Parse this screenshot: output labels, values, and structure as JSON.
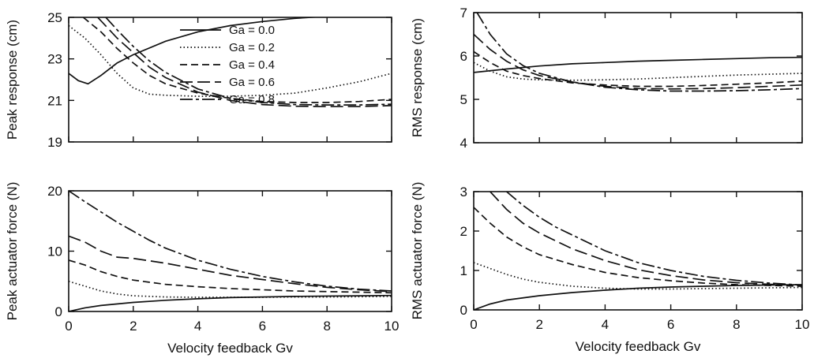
{
  "styles": [
    {
      "dash": "",
      "width": 1.7
    },
    {
      "dash": "1.5 3",
      "width": 1.9
    },
    {
      "dash": "9 5",
      "width": 1.7
    },
    {
      "dash": "16 6",
      "width": 1.7
    },
    {
      "dash": "16 4 4 4",
      "width": 1.7
    }
  ],
  "chart_data": [
    {
      "type": "line",
      "xlabel": "",
      "ylabel": "Peak response (cm)",
      "xlim": [
        0,
        10
      ],
      "ylim": [
        19,
        25
      ],
      "xticks": [],
      "yticks": [
        19,
        21,
        23,
        25
      ],
      "legend": {
        "placement": "top-right",
        "entries": [
          "Ga = 0.0",
          "Ga = 0.2",
          "Ga = 0.4",
          "Ga = 0.6",
          "Ga = 0.8"
        ]
      },
      "series": [
        {
          "name": "Ga = 0.0",
          "x": [
            0,
            0.3,
            0.6,
            1,
            1.5,
            2,
            3,
            4,
            5,
            6,
            7,
            8,
            9,
            10
          ],
          "y": [
            22.3,
            21.95,
            21.8,
            22.2,
            22.8,
            23.2,
            23.85,
            24.3,
            24.6,
            24.8,
            24.95,
            25.05,
            25.1,
            25.15
          ]
        },
        {
          "name": "Ga = 0.2",
          "x": [
            0,
            0.5,
            1,
            1.5,
            2,
            2.5,
            3,
            4,
            5,
            6,
            7,
            8,
            9,
            10
          ],
          "y": [
            24.6,
            24.0,
            23.2,
            22.3,
            21.6,
            21.3,
            21.25,
            21.2,
            21.2,
            21.25,
            21.35,
            21.6,
            21.9,
            22.3
          ]
        },
        {
          "name": "Ga = 0.4",
          "x": [
            0.45,
            1,
            1.5,
            2,
            2.5,
            3,
            4,
            5,
            6,
            7,
            8,
            9,
            10
          ],
          "y": [
            25.0,
            24.3,
            23.5,
            22.8,
            22.2,
            21.8,
            21.35,
            21.1,
            20.95,
            20.9,
            20.9,
            20.95,
            21.05
          ]
        },
        {
          "name": "Ga = 0.6",
          "x": [
            0.9,
            1.5,
            2,
            2.5,
            3,
            4,
            5,
            6,
            7,
            8,
            9,
            10
          ],
          "y": [
            25.0,
            24.0,
            23.3,
            22.6,
            22.1,
            21.4,
            21.0,
            20.8,
            20.72,
            20.7,
            20.7,
            20.75
          ]
        },
        {
          "name": "Ga = 0.8",
          "x": [
            1.15,
            1.5,
            2,
            2.5,
            3,
            4,
            5,
            6,
            7,
            8,
            9,
            10
          ],
          "y": [
            25.0,
            24.4,
            23.6,
            22.9,
            22.35,
            21.55,
            21.1,
            20.9,
            20.8,
            20.78,
            20.78,
            20.82
          ]
        }
      ]
    },
    {
      "type": "line",
      "xlabel": "",
      "ylabel": "RMS response (cm)",
      "xlim": [
        0,
        10
      ],
      "ylim": [
        4,
        7
      ],
      "xticks": [],
      "yticks": [
        4,
        5,
        6,
        7
      ],
      "series": [
        {
          "name": "Ga = 0.0",
          "x": [
            0,
            1,
            2,
            3,
            4,
            5,
            6,
            7,
            8,
            9,
            10
          ],
          "y": [
            5.62,
            5.7,
            5.77,
            5.82,
            5.85,
            5.88,
            5.9,
            5.92,
            5.94,
            5.96,
            5.97
          ]
        },
        {
          "name": "Ga = 0.2",
          "x": [
            0,
            0.5,
            1,
            1.5,
            2,
            3,
            4,
            5,
            6,
            7,
            8,
            9,
            10
          ],
          "y": [
            5.85,
            5.65,
            5.52,
            5.47,
            5.45,
            5.44,
            5.45,
            5.47,
            5.5,
            5.53,
            5.56,
            5.58,
            5.6
          ]
        },
        {
          "name": "Ga = 0.4",
          "x": [
            0,
            0.5,
            1,
            1.5,
            2,
            3,
            4,
            5,
            6,
            7,
            8,
            9,
            10
          ],
          "y": [
            6.1,
            5.85,
            5.65,
            5.55,
            5.48,
            5.38,
            5.33,
            5.3,
            5.3,
            5.32,
            5.35,
            5.38,
            5.42
          ]
        },
        {
          "name": "Ga = 0.6",
          "x": [
            0,
            0.5,
            1,
            1.5,
            2,
            3,
            4,
            5,
            6,
            7,
            8,
            9,
            10
          ],
          "y": [
            6.5,
            6.15,
            5.88,
            5.68,
            5.55,
            5.4,
            5.3,
            5.25,
            5.24,
            5.25,
            5.27,
            5.3,
            5.33
          ]
        },
        {
          "name": "Ga = 0.8",
          "x": [
            0.1,
            0.5,
            1,
            1.5,
            2,
            3,
            4,
            5,
            6,
            7,
            8,
            9,
            10
          ],
          "y": [
            7.0,
            6.5,
            6.05,
            5.78,
            5.6,
            5.4,
            5.28,
            5.22,
            5.19,
            5.19,
            5.2,
            5.22,
            5.25
          ]
        }
      ]
    },
    {
      "type": "line",
      "xlabel": "Velocity feedback Gv",
      "ylabel": "Peak actuator force (N)",
      "xlim": [
        0,
        10
      ],
      "ylim": [
        0,
        20
      ],
      "xticks": [
        0,
        2,
        4,
        6,
        8,
        10
      ],
      "yticks": [
        0,
        10,
        20
      ],
      "series": [
        {
          "name": "Ga = 0.0",
          "x": [
            0,
            0.5,
            1,
            2,
            3,
            4,
            5,
            6,
            7,
            8,
            9,
            10
          ],
          "y": [
            0,
            0.6,
            1.0,
            1.5,
            1.85,
            2.1,
            2.3,
            2.4,
            2.5,
            2.55,
            2.6,
            2.65
          ]
        },
        {
          "name": "Ga = 0.2",
          "x": [
            0,
            0.5,
            1,
            1.5,
            2,
            3,
            4,
            5,
            6,
            7,
            8,
            9,
            10
          ],
          "y": [
            5.0,
            4.2,
            3.4,
            2.9,
            2.6,
            2.4,
            2.35,
            2.35,
            2.35,
            2.4,
            2.4,
            2.45,
            2.5
          ]
        },
        {
          "name": "Ga = 0.4",
          "x": [
            0,
            0.5,
            1,
            1.5,
            2,
            3,
            4,
            5,
            6,
            7,
            8,
            9,
            10
          ],
          "y": [
            8.5,
            7.7,
            6.6,
            5.8,
            5.2,
            4.5,
            4.1,
            3.8,
            3.6,
            3.4,
            3.3,
            3.2,
            3.1
          ]
        },
        {
          "name": "Ga = 0.6",
          "x": [
            0,
            0.5,
            1,
            1.5,
            2,
            3,
            4,
            5,
            6,
            7,
            8,
            9,
            10
          ],
          "y": [
            12.5,
            11.5,
            10.0,
            9.0,
            8.8,
            8.0,
            7.0,
            6.0,
            5.3,
            4.6,
            4.0,
            3.6,
            3.3
          ]
        },
        {
          "name": "Ga = 0.8",
          "x": [
            0,
            0.5,
            1,
            1.5,
            2,
            2.5,
            3,
            4,
            5,
            6,
            7,
            8,
            9,
            10
          ],
          "y": [
            20.0,
            18.2,
            16.5,
            14.8,
            13.3,
            11.8,
            10.5,
            8.5,
            7.0,
            5.8,
            4.9,
            4.2,
            3.7,
            3.4
          ]
        }
      ]
    },
    {
      "type": "line",
      "xlabel": "Velocity feedback Gv",
      "ylabel": "RMS actuator force (N)",
      "xlim": [
        0,
        10
      ],
      "ylim": [
        0,
        3
      ],
      "xticks": [
        0,
        2,
        4,
        6,
        8,
        10
      ],
      "yticks": [
        0,
        1,
        2,
        3
      ],
      "series": [
        {
          "name": "Ga = 0.0",
          "x": [
            0,
            0.5,
            1,
            2,
            3,
            4,
            5,
            6,
            7,
            8,
            9,
            10
          ],
          "y": [
            0,
            0.15,
            0.25,
            0.36,
            0.44,
            0.5,
            0.55,
            0.58,
            0.6,
            0.62,
            0.63,
            0.64
          ]
        },
        {
          "name": "Ga = 0.2",
          "x": [
            0,
            0.5,
            1,
            1.5,
            2,
            3,
            4,
            5,
            6,
            7,
            8,
            9,
            10
          ],
          "y": [
            1.2,
            1.05,
            0.9,
            0.78,
            0.7,
            0.6,
            0.55,
            0.53,
            0.53,
            0.54,
            0.55,
            0.56,
            0.57
          ]
        },
        {
          "name": "Ga = 0.4",
          "x": [
            0,
            0.5,
            1,
            1.5,
            2,
            3,
            4,
            5,
            6,
            7,
            8,
            9,
            10
          ],
          "y": [
            2.6,
            2.2,
            1.85,
            1.6,
            1.4,
            1.15,
            0.95,
            0.82,
            0.74,
            0.68,
            0.64,
            0.62,
            0.6
          ]
        },
        {
          "name": "Ga = 0.6",
          "x": [
            0.5,
            1,
            1.5,
            2,
            2.5,
            3,
            4,
            5,
            6,
            7,
            8,
            9,
            10
          ],
          "y": [
            3.0,
            2.55,
            2.2,
            1.95,
            1.75,
            1.55,
            1.25,
            1.02,
            0.87,
            0.76,
            0.69,
            0.65,
            0.62
          ]
        },
        {
          "name": "Ga = 0.8",
          "x": [
            1.0,
            1.5,
            2,
            2.5,
            3,
            4,
            5,
            6,
            7,
            8,
            9,
            10
          ],
          "y": [
            3.0,
            2.65,
            2.35,
            2.1,
            1.9,
            1.5,
            1.2,
            1.0,
            0.85,
            0.75,
            0.68,
            0.63
          ]
        }
      ]
    }
  ]
}
